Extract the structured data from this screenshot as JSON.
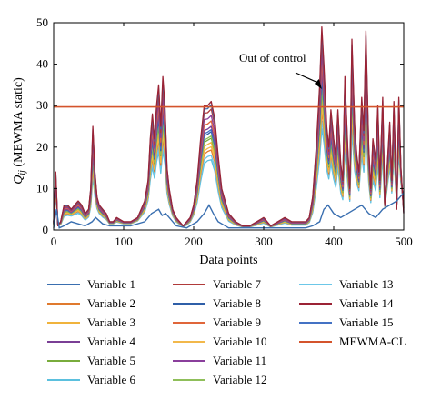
{
  "chart_data": {
    "type": "line",
    "title": "",
    "xlabel": "Data points",
    "ylabel_main": "Q",
    "ylabel_sub": "ij",
    "ylabel_rest": " (MEWMA static)",
    "xlim": [
      0,
      500
    ],
    "ylim": [
      0,
      50
    ],
    "xticks": [
      0,
      100,
      200,
      300,
      400,
      500
    ],
    "yticks": [
      0,
      10,
      20,
      30,
      40,
      50
    ],
    "grid": false,
    "legend_placement": "below",
    "annotation": {
      "text": "Out of control",
      "x": 383,
      "y": 34
    },
    "control_limit": {
      "name": "MEWMA-CL",
      "value": 29.7,
      "color": "#d4542c"
    },
    "envelope": {
      "x": [
        0,
        3,
        6,
        10,
        15,
        20,
        25,
        30,
        35,
        40,
        45,
        50,
        53,
        56,
        59,
        62,
        65,
        70,
        75,
        80,
        85,
        90,
        100,
        110,
        120,
        130,
        135,
        138,
        141,
        144,
        147,
        150,
        153,
        156,
        159,
        162,
        165,
        170,
        175,
        180,
        185,
        190,
        195,
        200,
        205,
        210,
        215,
        220,
        225,
        230,
        235,
        240,
        250,
        260,
        270,
        280,
        290,
        300,
        310,
        320,
        330,
        340,
        350,
        360,
        365,
        370,
        375,
        380,
        383,
        386,
        390,
        393,
        396,
        400,
        403,
        406,
        410,
        413,
        416,
        420,
        423,
        426,
        430,
        433,
        436,
        440,
        443,
        446,
        450,
        453,
        456,
        460,
        463,
        466,
        470,
        473,
        476,
        480,
        483,
        486,
        490,
        493,
        496,
        500
      ],
      "y": [
        2,
        14,
        1,
        2,
        6,
        6,
        5,
        6,
        7,
        6,
        4,
        5,
        10,
        25,
        14,
        8,
        6,
        5,
        4,
        2,
        2,
        3,
        2,
        2,
        3,
        7,
        12,
        22,
        28,
        22,
        30,
        35,
        25,
        37,
        30,
        15,
        10,
        5,
        3,
        2,
        1,
        2,
        3,
        6,
        12,
        22,
        30,
        30,
        31,
        27,
        18,
        10,
        4,
        2,
        1,
        1,
        2,
        3,
        1,
        2,
        3,
        2,
        2,
        2,
        3,
        8,
        20,
        35,
        49,
        40,
        25,
        20,
        29,
        22,
        18,
        29,
        16,
        12,
        37,
        20,
        10,
        46,
        25,
        18,
        14,
        32,
        24,
        48,
        20,
        10,
        22,
        17,
        30,
        12,
        32,
        6,
        14,
        26,
        12,
        31,
        5,
        32,
        15,
        4
      ]
    },
    "baseline": {
      "x": [
        0,
        4,
        8,
        15,
        25,
        35,
        45,
        55,
        60,
        70,
        80,
        90,
        110,
        130,
        140,
        150,
        155,
        160,
        165,
        175,
        190,
        205,
        215,
        222,
        228,
        235,
        250,
        270,
        300,
        330,
        360,
        370,
        380,
        386,
        392,
        400,
        410,
        420,
        430,
        440,
        450,
        460,
        470,
        480,
        490,
        500
      ],
      "y": [
        0.5,
        5,
        0.5,
        1,
        2,
        1.5,
        1,
        2,
        3,
        1.5,
        1,
        1,
        1,
        2,
        4,
        5,
        3.5,
        4,
        3,
        1,
        0.5,
        2,
        4,
        6,
        4,
        2,
        0.5,
        0.5,
        0.5,
        0.5,
        0.5,
        1,
        2,
        5,
        6,
        4,
        3,
        4,
        5,
        6,
        4,
        3,
        5,
        6,
        7,
        9
      ]
    },
    "series": [
      {
        "name": "Variable 1",
        "scale": 0.97,
        "color": "#3a6fb0"
      },
      {
        "name": "Variable 2",
        "scale": 0.55,
        "color": "#e07a2e"
      },
      {
        "name": "Variable 3",
        "scale": 0.62,
        "color": "#f0b33c"
      },
      {
        "name": "Variable 4",
        "scale": 0.77,
        "color": "#7a3f95"
      },
      {
        "name": "Variable 5",
        "scale": 0.66,
        "color": "#79ac3c"
      },
      {
        "name": "Variable 6",
        "scale": 0.46,
        "color": "#5bc0de"
      },
      {
        "name": "Variable 7",
        "scale": 0.93,
        "color": "#b03a3a"
      },
      {
        "name": "Variable 8",
        "scale": 0.72,
        "color": "#2f5fa8"
      },
      {
        "name": "Variable 9",
        "scale": 0.82,
        "color": "#e0663a"
      },
      {
        "name": "Variable 10",
        "scale": 0.58,
        "color": "#f2b84b"
      },
      {
        "name": "Variable 11",
        "scale": 0.87,
        "color": "#8a3f9c"
      },
      {
        "name": "Variable 12",
        "scale": 0.68,
        "color": "#8fbf5a"
      },
      {
        "name": "Variable 13",
        "scale": 0.5,
        "color": "#6cc7e8"
      },
      {
        "name": "Variable 14",
        "scale": 1.0,
        "color": "#9b2335"
      },
      {
        "name": "Variable 15",
        "scale": 0.74,
        "color": "#4472c4"
      }
    ]
  }
}
